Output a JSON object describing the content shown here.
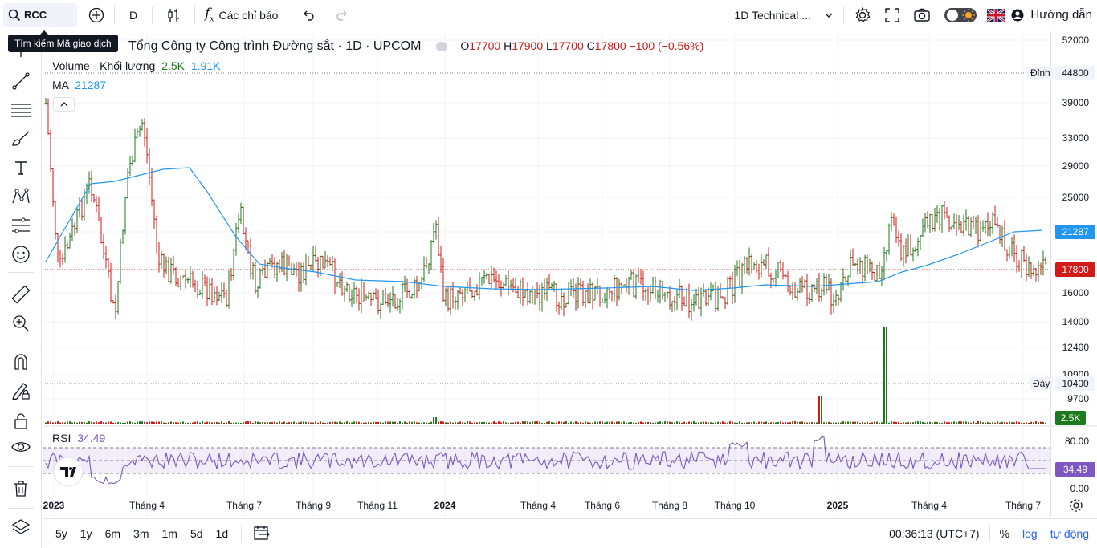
{
  "topbar": {
    "symbol": "RCC",
    "interval": "D",
    "indicators_label": "Các chỉ báo",
    "layout_name": "1D Technical ...",
    "help_label": "Hướng dẫn"
  },
  "tooltip": {
    "text": "Tìm kiếm Mã giao dịch"
  },
  "leftbar": {
    "tools": [
      "crosshair-icon",
      "trend-line-icon",
      "horizontal-lines-icon",
      "brush-icon",
      "text-icon",
      "pattern-icon",
      "measure-lines-icon",
      "emoji-icon",
      "ruler-icon",
      "zoom-in-icon",
      "magnet-icon",
      "lock-drawing-icon",
      "lock-icon",
      "eye-icon",
      "trash-icon",
      "layers-icon"
    ]
  },
  "legend": {
    "title": "Tổng Công ty Công trình Đường sắt · 1D · UPCOM",
    "o_label": "O",
    "o": "17700",
    "h_label": "H",
    "h": "17900",
    "l_label": "L",
    "l": "17700",
    "c_label": "C",
    "c": "17800",
    "change": "−100 (−0.56%)",
    "volume_label": "Volume - Khối lượng",
    "volume_1": "2.5K",
    "volume_2": "1.91K",
    "ma_label": "MA",
    "ma_value": "21287",
    "rsi_label": "RSI",
    "rsi_value": "34.49"
  },
  "price_axis": {
    "ticks": [
      "52000",
      "39000",
      "33000",
      "29000",
      "25000",
      "16000",
      "14000",
      "12400",
      "10900",
      "9700"
    ],
    "high_tag": "Đỉnh",
    "high_value": "44800",
    "low_tag": "Đáy",
    "low_value": "10400",
    "ma_badge": "21287",
    "last_badge": "17800",
    "volume_badge": "2.5K",
    "rsi_ticks": [
      "80.00",
      "0.00"
    ],
    "rsi_badge": "34.49"
  },
  "time_axis": {
    "labels": [
      "2023",
      "Tháng 4",
      "Tháng 7",
      "Tháng 9",
      "Tháng 11",
      "2024",
      "Tháng 4",
      "Tháng 6",
      "Tháng 8",
      "Tháng 10",
      "2025",
      "Tháng 4",
      "Tháng 7"
    ]
  },
  "bottombar": {
    "ranges": [
      "5y",
      "1y",
      "6m",
      "3m",
      "1m",
      "5d",
      "1d"
    ],
    "clock": "00:36:13 (UTC+7)",
    "percent": "%",
    "log": "log",
    "auto": "tự động"
  },
  "colors": {
    "up": "#1b7a1b",
    "down": "#d11a1a",
    "ma": "#2196f3",
    "rsi": "#7e57c2",
    "accent": "#2962ff"
  }
}
